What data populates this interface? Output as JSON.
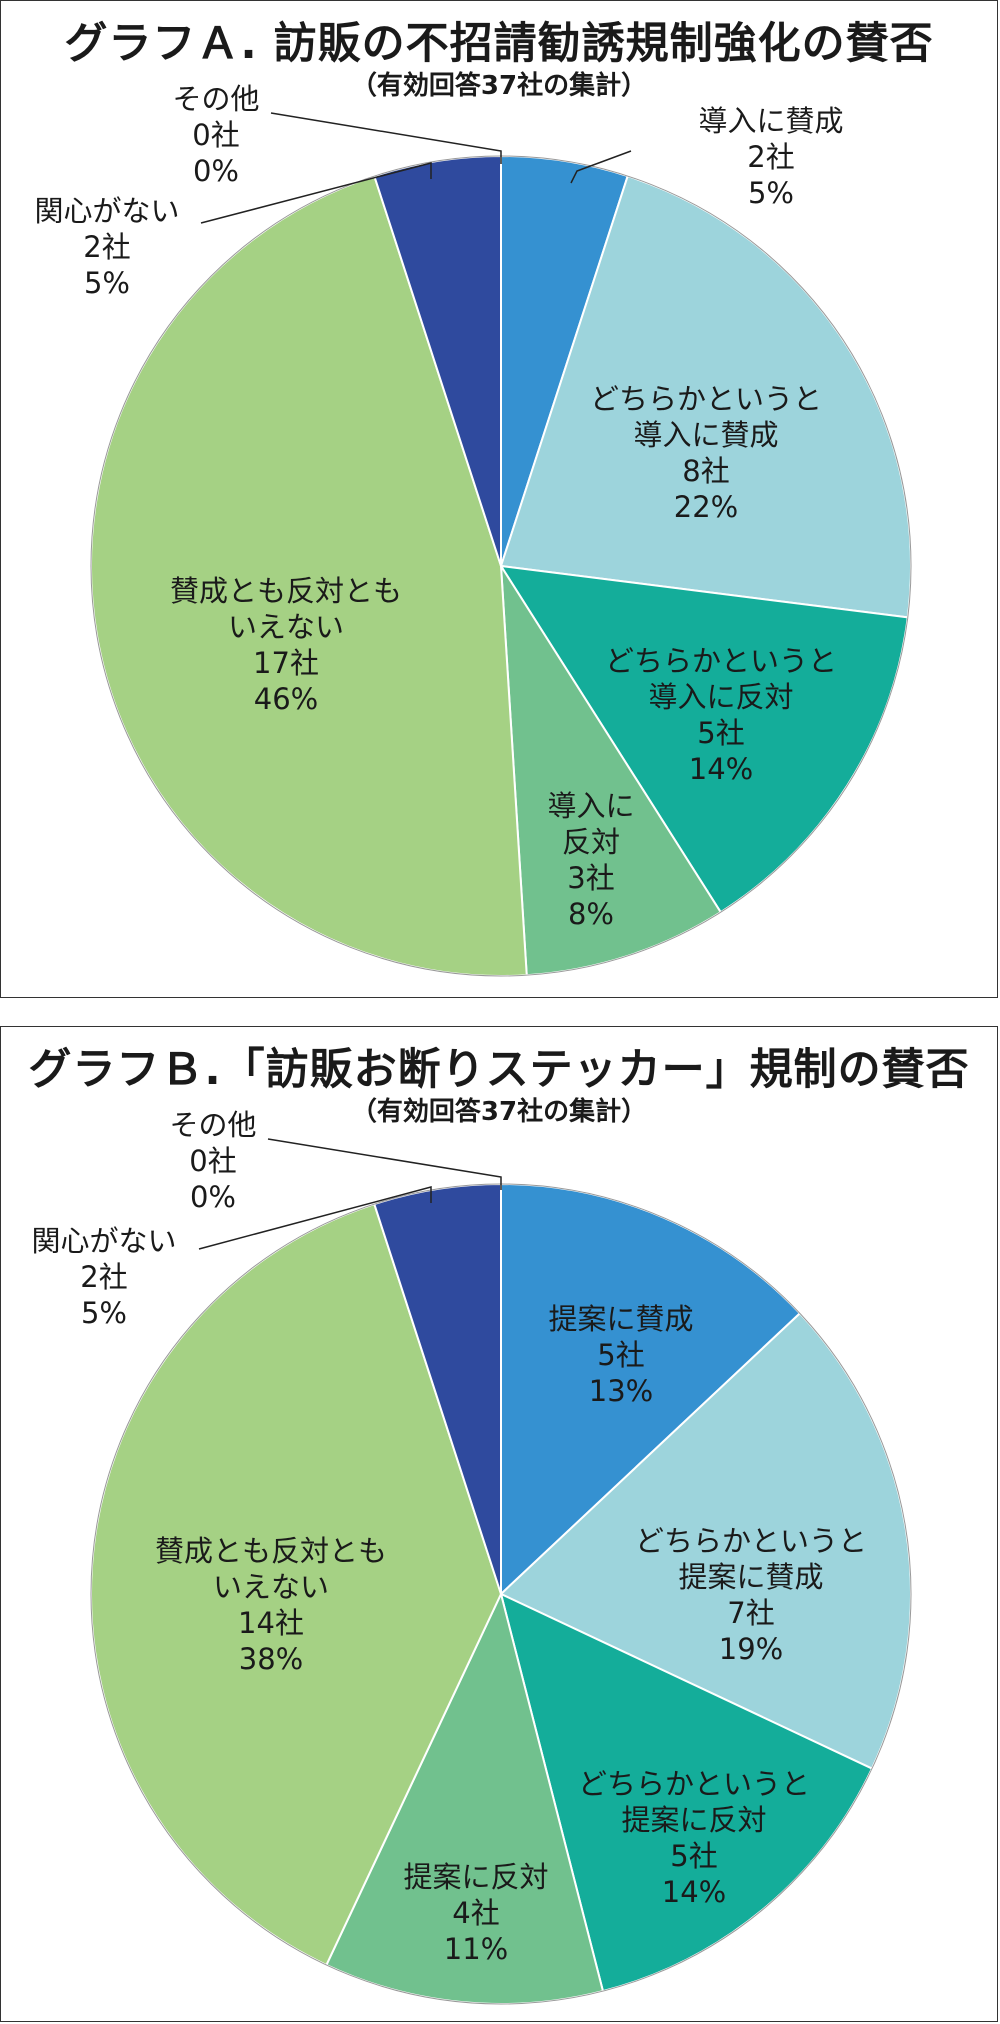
{
  "chart_data": [
    {
      "type": "pie",
      "title": "グラフＡ. 訪販の不招請勧誘規制強化の賛否",
      "subtitle": "（有効回答37社の集計）",
      "slices": [
        {
          "label": "導入に賛成",
          "count": "2社",
          "percent": "5%",
          "value": 5,
          "color": "#3591d1"
        },
        {
          "label": "どちらかというと導入に賛成",
          "count": "8社",
          "percent": "22%",
          "value": 22,
          "color": "#9dd4dc"
        },
        {
          "label": "どちらかというと導入に反対",
          "count": "5社",
          "percent": "14%",
          "value": 14,
          "color": "#14ad9a"
        },
        {
          "label": "導入に反対",
          "count": "3社",
          "percent": "8%",
          "value": 8,
          "color": "#71c18e"
        },
        {
          "label": "賛成とも反対ともいえない",
          "count": "17社",
          "percent": "46%",
          "value": 46,
          "color": "#a5d184"
        },
        {
          "label": "関心がない",
          "count": "2社",
          "percent": "5%",
          "value": 5,
          "color": "#2f4a9e"
        },
        {
          "label": "その他",
          "count": "0社",
          "percent": "0%",
          "value": 0,
          "color": "#555555"
        }
      ]
    },
    {
      "type": "pie",
      "title": "グラフＢ.「訪販お断りステッカー」規制の賛否",
      "subtitle": "（有効回答37社の集計）",
      "slices": [
        {
          "label": "提案に賛成",
          "count": "5社",
          "percent": "13%",
          "value": 13,
          "color": "#3591d1"
        },
        {
          "label": "どちらかというと提案に賛成",
          "count": "7社",
          "percent": "19%",
          "value": 19,
          "color": "#9dd4dc"
        },
        {
          "label": "どちらかというと提案に反対",
          "count": "5社",
          "percent": "14%",
          "value": 14,
          "color": "#14ad9a"
        },
        {
          "label": "提案に反対",
          "count": "4社",
          "percent": "11%",
          "value": 11,
          "color": "#71c18e"
        },
        {
          "label": "賛成とも反対ともいえない",
          "count": "14社",
          "percent": "38%",
          "value": 38,
          "color": "#a5d184"
        },
        {
          "label": "関心がない",
          "count": "2社",
          "percent": "5%",
          "value": 5,
          "color": "#2f4a9e"
        },
        {
          "label": "その他",
          "count": "0社",
          "percent": "0%",
          "value": 0,
          "color": "#555555"
        }
      ]
    }
  ]
}
